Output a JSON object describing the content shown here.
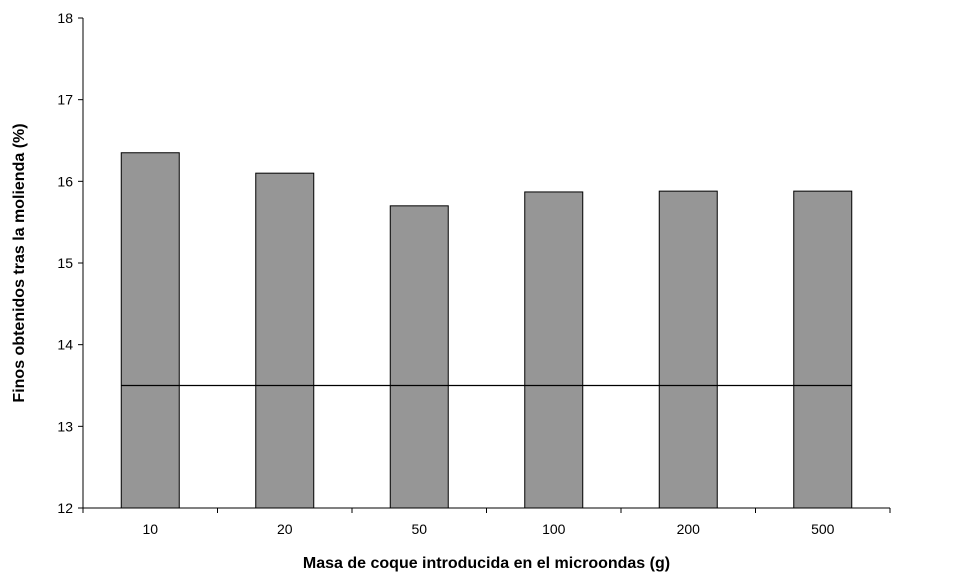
{
  "chart_data": {
    "type": "bar",
    "title": "",
    "xlabel": "Masa de coque introducida en el microondas (g)",
    "ylabel": "Finos obtenidos tras la molienda (%)",
    "categories": [
      "10",
      "20",
      "50",
      "100",
      "200",
      "500"
    ],
    "values": [
      16.35,
      16.1,
      15.7,
      15.87,
      15.88,
      15.88
    ],
    "ylim": [
      12,
      18
    ],
    "yticks": [
      "12",
      "13",
      "14",
      "15",
      "16",
      "17",
      "18"
    ],
    "reference_line": {
      "value": 13.5
    },
    "grid": false,
    "legend": "none",
    "bar_color": "#969696",
    "bar_edge_color": "#000000",
    "line_color": "#000000"
  }
}
